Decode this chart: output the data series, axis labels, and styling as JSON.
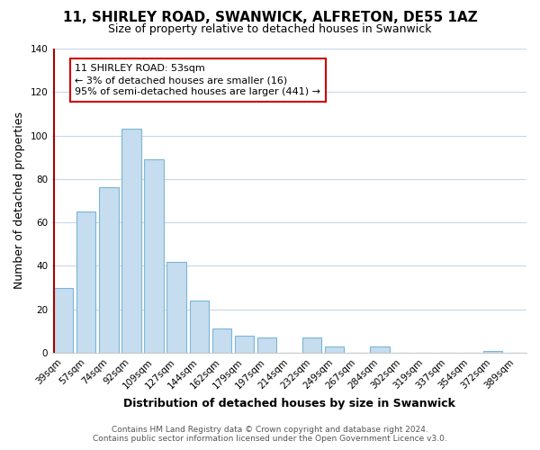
{
  "title": "11, SHIRLEY ROAD, SWANWICK, ALFRETON, DE55 1AZ",
  "subtitle": "Size of property relative to detached houses in Swanwick",
  "xlabel": "Distribution of detached houses by size in Swanwick",
  "ylabel": "Number of detached properties",
  "bar_labels": [
    "39sqm",
    "57sqm",
    "74sqm",
    "92sqm",
    "109sqm",
    "127sqm",
    "144sqm",
    "162sqm",
    "179sqm",
    "197sqm",
    "214sqm",
    "232sqm",
    "249sqm",
    "267sqm",
    "284sqm",
    "302sqm",
    "319sqm",
    "337sqm",
    "354sqm",
    "372sqm",
    "389sqm"
  ],
  "bar_values": [
    30,
    65,
    76,
    103,
    89,
    42,
    24,
    11,
    8,
    7,
    0,
    7,
    3,
    0,
    3,
    0,
    0,
    0,
    0,
    1,
    0
  ],
  "bar_color": "#c5ddef",
  "bar_edge_color": "#7ab6d8",
  "vline_x": 0,
  "vline_color": "#aa0000",
  "ylim": [
    0,
    140
  ],
  "yticks": [
    0,
    20,
    40,
    60,
    80,
    100,
    120,
    140
  ],
  "annotation_box_text": "11 SHIRLEY ROAD: 53sqm\n← 3% of detached houses are smaller (16)\n95% of semi-detached houses are larger (441) →",
  "footer_line1": "Contains HM Land Registry data © Crown copyright and database right 2024.",
  "footer_line2": "Contains public sector information licensed under the Open Government Licence v3.0.",
  "background_color": "#ffffff",
  "grid_color": "#c8d8e8",
  "title_fontsize": 11,
  "subtitle_fontsize": 9,
  "axis_label_fontsize": 9,
  "tick_fontsize": 7.5,
  "annotation_fontsize": 8,
  "footer_fontsize": 6.5
}
